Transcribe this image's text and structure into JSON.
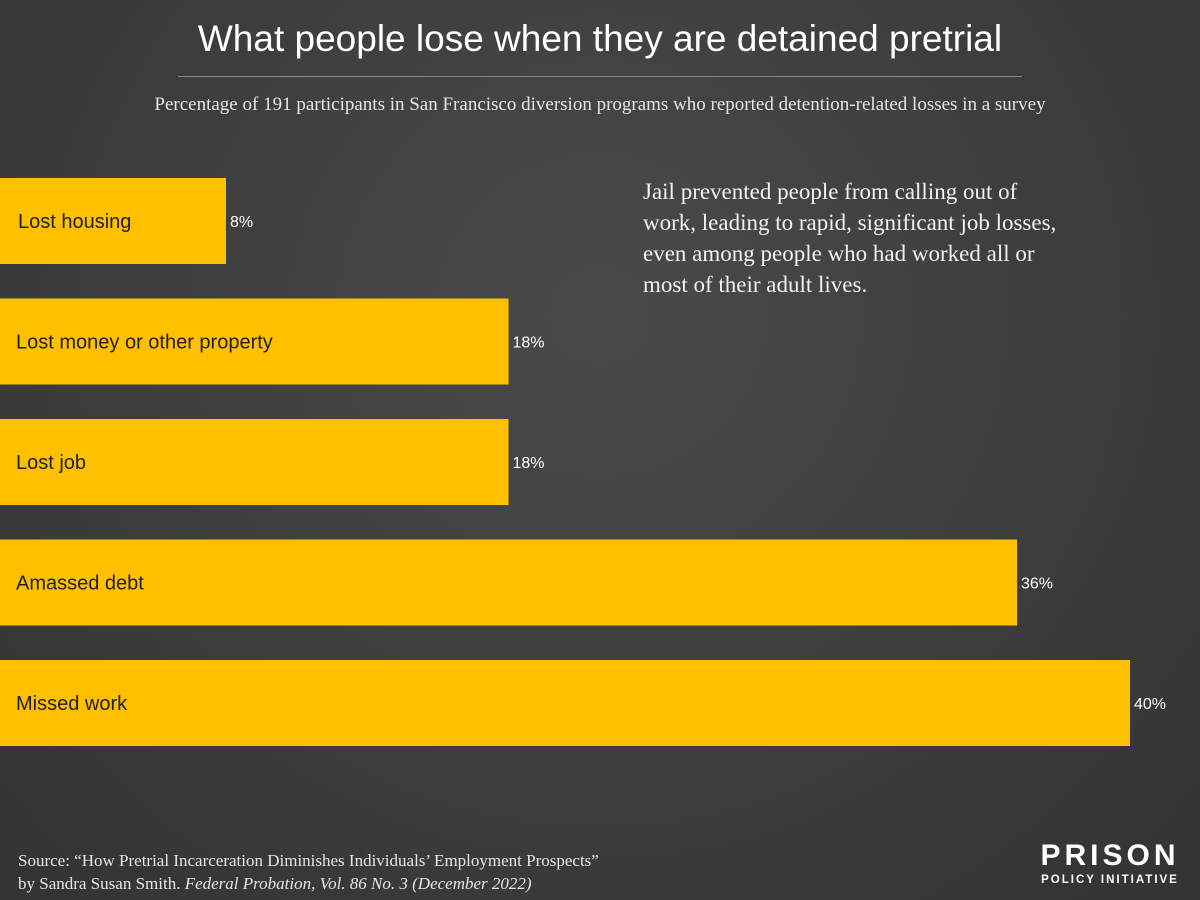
{
  "chart_data": {
    "type": "bar",
    "orientation": "horizontal",
    "title": "What people lose when they are detained pretrial",
    "subtitle": "Percentage of 191 participants in San Francisco diversion programs who reported detention-related losses in a survey",
    "categories": [
      "Lost housing",
      "Lost money or other property",
      "Lost job",
      "Amassed debt",
      "Missed work"
    ],
    "values": [
      8,
      18,
      18,
      36,
      40
    ],
    "value_labels": [
      "8%",
      "18%",
      "18%",
      "36%",
      "40%"
    ],
    "xlim": [
      0,
      40
    ],
    "grid": false,
    "bar_color": "#ffc000",
    "annotation": "Jail prevented people from calling out of work, leading to rapid, significant job losses, even among people who had worked all or most of their adult lives."
  },
  "source": {
    "line1": "Source: “How Pretrial Incarceration Diminishes Individuals’ Employment Prospects”",
    "line2_prefix": "by Sandra Susan Smith. ",
    "line2_italic": "Federal Probation, Vol. 86 No. 3 (December 2022)"
  },
  "logo": {
    "top": "PRISON",
    "bottom": "POLICY INITIATIVE"
  }
}
